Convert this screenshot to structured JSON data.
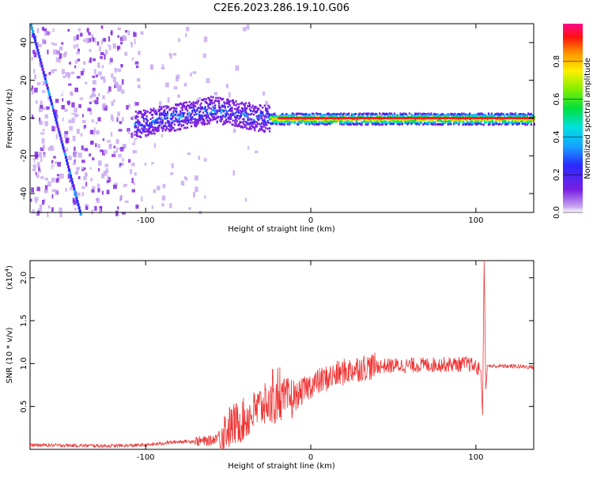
{
  "title": "C2E6.2023.286.19.10.G06",
  "colors": {
    "snr_line": "#ee3333",
    "axis": "#000000",
    "spectrum_base": "#6a1fd6",
    "spectrum_faint": "#c9a6f0"
  },
  "colorbar": {
    "label": "Normalized spectral amplitude",
    "tick_labels": [
      "0.0",
      "0.2",
      "0.4",
      "0.6",
      "0.8"
    ],
    "range": [
      0,
      1
    ],
    "colormap": "rainbow (violet-blue-cyan-green-yellow-orange-red-magenta)"
  },
  "chart_data": [
    {
      "type": "heatmap",
      "title": "C2E6.2023.286.19.10.G06",
      "xlabel": "Height of straight line (km)",
      "ylabel": "Frequency (Hz)",
      "xlim": [
        -170,
        135
      ],
      "ylim": [
        -50,
        50
      ],
      "x_ticks": [
        -100,
        0,
        100
      ],
      "x_tick_labels": [
        "-100",
        "0",
        "100"
      ],
      "y_ticks": [
        -40,
        -20,
        0,
        20,
        40
      ],
      "y_tick_labels": [
        "-40",
        "-20",
        "0",
        "20",
        "40"
      ],
      "ridge": {
        "x": [
          -105,
          -90,
          -75,
          -60,
          -45,
          -35,
          -25,
          -10,
          0,
          20,
          60,
          100,
          135
        ],
        "y": [
          -3,
          0,
          2,
          5,
          3,
          1,
          0,
          0,
          0,
          0,
          0,
          0,
          0
        ]
      },
      "diagonal_streak": {
        "x": [
          -170,
          -140
        ],
        "y": [
          50,
          -50
        ]
      }
    },
    {
      "type": "line",
      "xlabel": "Height of straight line (km)",
      "ylabel": "SNR (10 * v/v)",
      "y_multiplier_label": "(x10",
      "y_multiplier_exp": "4",
      "xlim": [
        -170,
        135
      ],
      "ylim": [
        0,
        22000
      ],
      "x_ticks": [
        -100,
        0,
        100
      ],
      "x_tick_labels": [
        "-100",
        "0",
        "100"
      ],
      "y_ticks": [
        5000,
        10000,
        15000,
        20000
      ],
      "y_tick_labels": [
        "0.5",
        "1.0",
        "1.5",
        "2.0"
      ],
      "series": [
        {
          "x": [
            -170,
            -140,
            -120,
            -100,
            -80,
            -60,
            -50,
            -40,
            -30,
            -20,
            -10,
            0,
            10,
            20,
            30,
            40,
            60,
            80,
            90,
            95,
            100,
            103,
            104,
            105,
            106,
            107,
            110,
            120,
            135
          ],
          "y": [
            500,
            450,
            400,
            500,
            900,
            1000,
            2500,
            3500,
            5000,
            5500,
            6000,
            7500,
            8300,
            9000,
            9500,
            9700,
            9800,
            9900,
            9900,
            10000,
            9600,
            9200,
            4000,
            22000,
            7000,
            9800,
            9700,
            9700,
            9600
          ]
        }
      ]
    }
  ]
}
